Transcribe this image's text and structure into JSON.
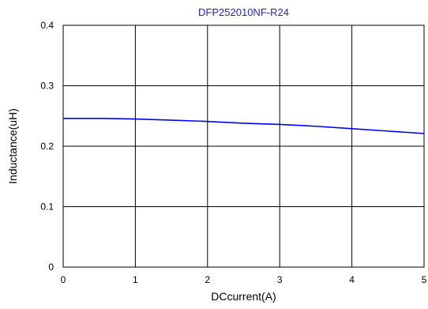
{
  "chart_data": {
    "type": "line",
    "title": "DFP252010NF-R24",
    "xlabel": "DCcurrent(A)",
    "ylabel": "Inductance(uH)",
    "xlim": [
      0,
      5
    ],
    "ylim": [
      0,
      0.4
    ],
    "x_ticks": [
      0,
      1,
      2,
      3,
      4,
      5
    ],
    "y_ticks": [
      0,
      0.1,
      0.2,
      0.3,
      0.4
    ],
    "x_tick_labels": [
      "0",
      "1",
      "2",
      "3",
      "4",
      "5"
    ],
    "y_tick_labels": [
      "0",
      "0.1",
      "0.2",
      "0.3",
      "0.4"
    ],
    "grid": true,
    "legend": "none",
    "series": [
      {
        "x": [
          0,
          0.5,
          1,
          1.5,
          2,
          2.5,
          3,
          3.5,
          4,
          4.5,
          5
        ],
        "values": [
          0.246,
          0.246,
          0.245,
          0.243,
          0.241,
          0.238,
          0.236,
          0.233,
          0.229,
          0.225,
          0.221
        ]
      }
    ],
    "colors": {
      "title": "#1f1fd0",
      "line": "#0000ff",
      "grid": "#000000"
    }
  }
}
